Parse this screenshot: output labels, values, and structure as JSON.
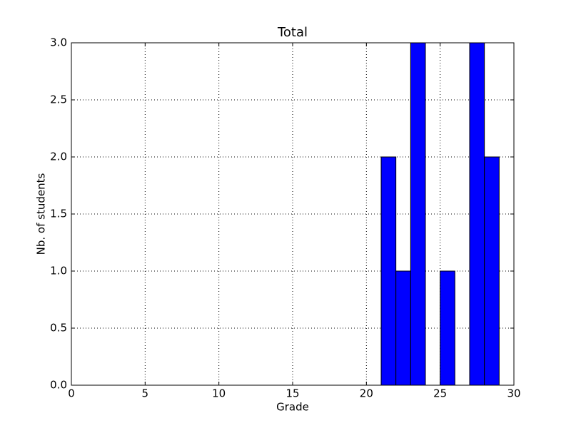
{
  "chart_data": {
    "type": "histogram",
    "title": "Total",
    "xlabel": "Grade",
    "ylabel": "Nb. of students",
    "bins": [
      0,
      1,
      2,
      3,
      4,
      5,
      6,
      7,
      8,
      9,
      10,
      11,
      12,
      13,
      14,
      15,
      16,
      17,
      18,
      19,
      20,
      21,
      22,
      23,
      24,
      25,
      26,
      27,
      28,
      29
    ],
    "counts": [
      0,
      0,
      0,
      0,
      0,
      0,
      0,
      0,
      0,
      0,
      0,
      0,
      0,
      0,
      0,
      0,
      0,
      0,
      0,
      0,
      0,
      2,
      1,
      3,
      0,
      1,
      0,
      3,
      2
    ],
    "color": "#0000ff",
    "xlim": [
      0,
      30
    ],
    "xticks": [
      0,
      5,
      10,
      15,
      20,
      25,
      30
    ],
    "ylim": [
      0,
      3
    ],
    "yticks": [
      {
        "value": 0,
        "label": "0.0"
      },
      {
        "value": 0.5,
        "label": "0.5"
      },
      {
        "value": 1,
        "label": "1.0"
      },
      {
        "value": 1.5,
        "label": "1.5"
      },
      {
        "value": 2,
        "label": "2.0"
      },
      {
        "value": 2.5,
        "label": "2.5"
      },
      {
        "value": 3,
        "label": "3.0"
      }
    ],
    "grid": true
  }
}
